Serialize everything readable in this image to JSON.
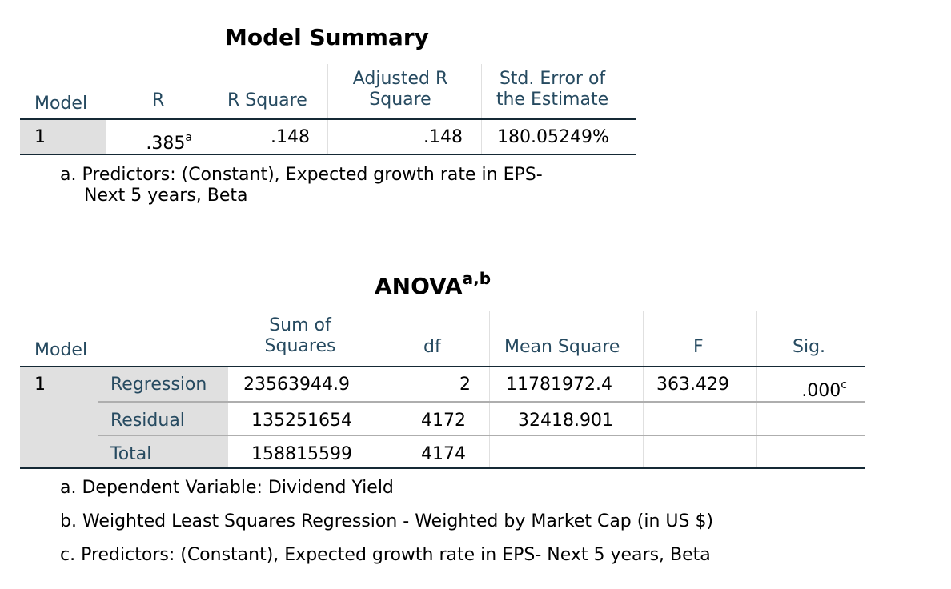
{
  "model_summary": {
    "title": "Model Summary",
    "headers": {
      "model": "Model",
      "r": "R",
      "r_square": "R Square",
      "adj_r_square_line1": "Adjusted R",
      "adj_r_square_line2": "Square",
      "std_error_line1": "Std. Error of",
      "std_error_line2": "the Estimate"
    },
    "row": {
      "model": "1",
      "r": ".385",
      "r_note": "a",
      "r_square": ".148",
      "adj_r_square": ".148",
      "std_error": "180.05249%"
    },
    "footnote_line1": "a. Predictors: (Constant), Expected growth rate in EPS-",
    "footnote_line2": "Next 5 years, Beta"
  },
  "anova": {
    "title": "ANOVA",
    "title_note": "a,b",
    "headers": {
      "model": "Model",
      "sum_squares_line1": "Sum of",
      "sum_squares_line2": "Squares",
      "df": "df",
      "mean_square": "Mean Square",
      "f": "F",
      "sig": "Sig."
    },
    "model": "1",
    "rows": [
      {
        "label": "Regression",
        "sum_squares": "23563944.9",
        "df": "2",
        "mean_square": "11781972.4",
        "f": "363.429",
        "sig": ".000",
        "sig_note": "c"
      },
      {
        "label": "Residual",
        "sum_squares": "135251654",
        "df": "4172",
        "mean_square": "32418.901",
        "f": "",
        "sig": ""
      },
      {
        "label": "Total",
        "sum_squares": "158815599",
        "df": "4174",
        "mean_square": "",
        "f": "",
        "sig": ""
      }
    ],
    "footnotes": [
      "a. Dependent Variable: Dividend Yield",
      "b. Weighted Least Squares Regression - Weighted by Market Cap (in US $)",
      "c. Predictors: (Constant), Expected growth rate in EPS- Next 5 years, Beta"
    ]
  }
}
